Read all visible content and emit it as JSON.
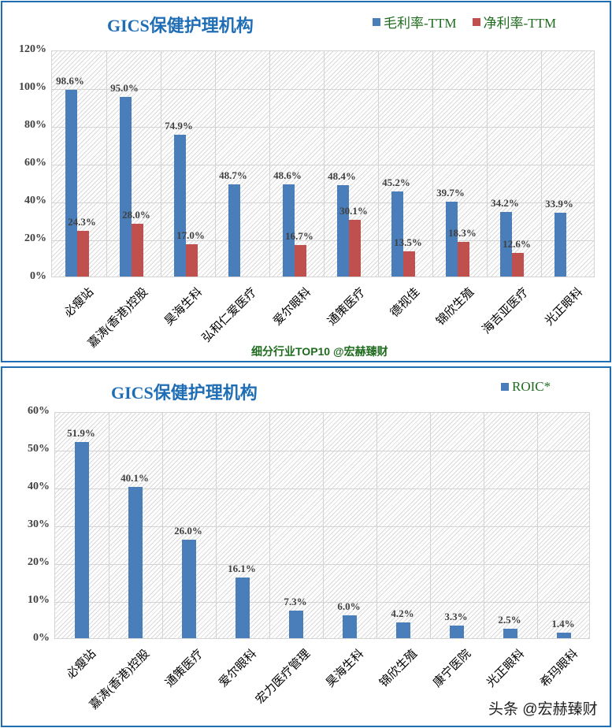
{
  "charts": [
    {
      "title": "GICS保健护理机构",
      "legend": [
        {
          "label": "毛利率-TTM",
          "color": "#4a7ebb"
        },
        {
          "label": "净利率-TTM",
          "color": "#c0504d"
        }
      ],
      "yticks": [
        "0%",
        "20%",
        "40%",
        "60%",
        "80%",
        "100%",
        "120%"
      ],
      "footer": "细分行业TOP10 @宏赫臻财"
    },
    {
      "title": "GICS保健护理机构",
      "legend": [
        {
          "label": "ROIC*",
          "color": "#4a7ebb"
        }
      ],
      "yticks": [
        "0%",
        "10%",
        "20%",
        "30%",
        "40%",
        "50%",
        "60%"
      ],
      "watermark": "头条 @宏赫臻财"
    }
  ],
  "chart_data": [
    {
      "type": "bar",
      "title": "GICS保健护理机构",
      "xlabel": "",
      "ylabel": "",
      "ylim": [
        0,
        120
      ],
      "grid": true,
      "legend_position": "top-right",
      "categories": [
        "必瘦站",
        "嘉涛(香港)控股",
        "昊海生科",
        "弘和仁爱医疗",
        "爱尔眼科",
        "通策医疗",
        "德视佳",
        "锦欣生殖",
        "海吉亚医疗",
        "光正眼科"
      ],
      "series": [
        {
          "name": "毛利率-TTM",
          "color": "#4a7ebb",
          "values": [
            98.6,
            95.0,
            74.9,
            48.7,
            48.6,
            48.4,
            45.2,
            39.7,
            34.2,
            33.9
          ],
          "labels": [
            "98.6%",
            "95.0%",
            "74.9%",
            "48.7%",
            "48.6%",
            "48.4%",
            "45.2%",
            "39.7%",
            "34.2%",
            "33.9%"
          ]
        },
        {
          "name": "净利率-TTM",
          "color": "#c0504d",
          "values": [
            24.3,
            28.0,
            17.0,
            null,
            16.7,
            30.1,
            13.5,
            18.3,
            12.6,
            null
          ],
          "labels": [
            "24.3%",
            "28.0%",
            "17.0%",
            "",
            "16.7%",
            "30.1%",
            "13.5%",
            "18.3%",
            "12.6%",
            ""
          ]
        }
      ],
      "annotations": [
        "细分行业TOP10 @宏赫臻财"
      ]
    },
    {
      "type": "bar",
      "title": "GICS保健护理机构",
      "xlabel": "",
      "ylabel": "",
      "ylim": [
        0,
        60
      ],
      "grid": true,
      "legend_position": "top-right",
      "categories": [
        "必瘦站",
        "嘉涛(香港)控股",
        "通策医疗",
        "爱尔眼科",
        "宏力医疗管理",
        "昊海生科",
        "锦欣生殖",
        "康宁医院",
        "光正眼科",
        "希玛眼科"
      ],
      "series": [
        {
          "name": "ROIC*",
          "color": "#4a7ebb",
          "values": [
            51.9,
            40.1,
            26.0,
            16.1,
            7.3,
            6.0,
            4.2,
            3.3,
            2.5,
            1.4
          ],
          "labels": [
            "51.9%",
            "40.1%",
            "26.0%",
            "16.1%",
            "7.3%",
            "6.0%",
            "4.2%",
            "3.3%",
            "2.5%",
            "1.4%"
          ]
        }
      ],
      "annotations": [
        "头条 @宏赫臻财"
      ]
    }
  ]
}
